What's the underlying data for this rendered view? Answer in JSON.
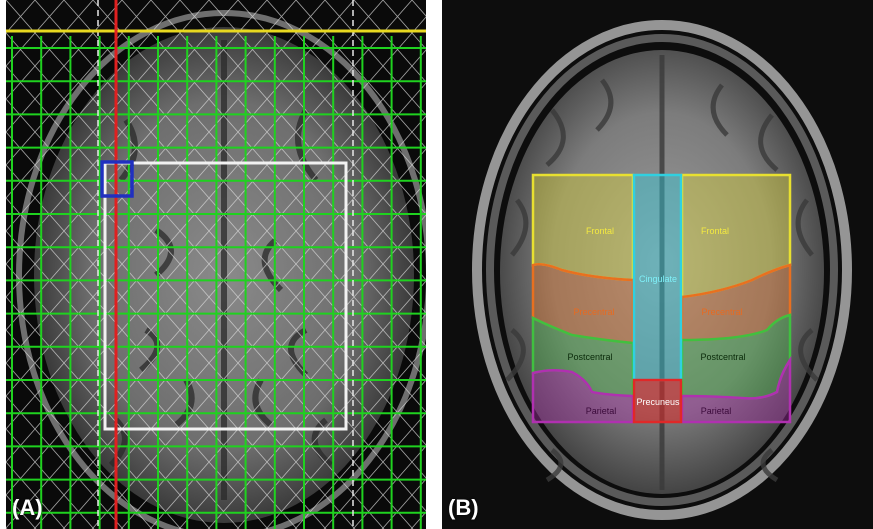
{
  "panels": {
    "a": {
      "letter": "(A)"
    },
    "b": {
      "letter": "(B)"
    }
  },
  "regions": {
    "frontal_left": "Frontal",
    "frontal_right": "Frontal",
    "cingulate": "Cingulate",
    "precentral_left": "Precentral",
    "precentral_right": "Precentral",
    "postcentral_left": "Postcentral",
    "postcentral_right": "Postcentral",
    "parietal_left": "Parietal",
    "parietal_right": "Parietal",
    "precuneus": "Precuneus"
  },
  "colors": {
    "grid_green": "#1fd21f",
    "grid_white": "#d8d8d8",
    "voxel_box": "#2030c0",
    "sagittal_line": "#e02020",
    "top_line": "#e8d820",
    "frontal": "#e8e030",
    "precentral": "#e87020",
    "postcentral": "#40c040",
    "parietal": "#b030b0",
    "cingulate": "#30d0e0",
    "precuneus": "#e02828"
  }
}
